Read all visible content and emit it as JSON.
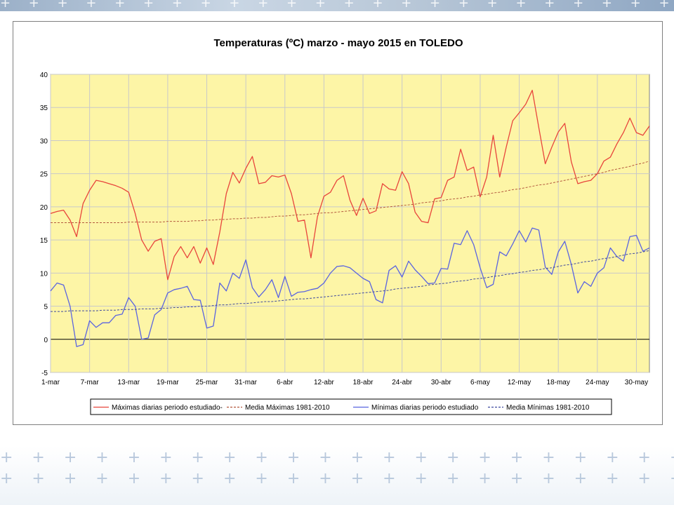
{
  "chart_data": {
    "type": "line",
    "title": "Temperaturas (ºC) marzo - mayo 2015 en TOLEDO",
    "xlabel": "",
    "ylabel": "",
    "ylim": [
      -5,
      40
    ],
    "yticks": [
      -5,
      0,
      5,
      10,
      15,
      20,
      25,
      30,
      35,
      40
    ],
    "xticks": [
      "1-mar",
      "7-mar",
      "13-mar",
      "19-mar",
      "25-mar",
      "31-mar",
      "6-abr",
      "12-abr",
      "18-abr",
      "24-abr",
      "30-abr",
      "6-may",
      "12-may",
      "18-may",
      "24-may",
      "30-may"
    ],
    "x_start": "1-mar",
    "x_end": "31-may",
    "plot_background": "#fdf5a6",
    "grid": true,
    "legend_position": "bottom",
    "series": [
      {
        "name": "Máximas diarias periodo estudiado",
        "color": "#e8453c",
        "dash": "solid",
        "values": [
          19.0,
          19.3,
          19.5,
          18.0,
          15.5,
          20.5,
          22.5,
          24.0,
          23.8,
          23.5,
          23.2,
          22.8,
          22.2,
          19.0,
          15.0,
          13.3,
          14.8,
          15.2,
          9.0,
          12.5,
          14.0,
          12.3,
          14.0,
          11.5,
          13.8,
          11.3,
          16.2,
          22.0,
          25.2,
          23.6,
          25.8,
          27.6,
          23.5,
          23.7,
          24.7,
          24.5,
          24.8,
          22.0,
          17.8,
          18.0,
          12.3,
          18.5,
          21.6,
          22.2,
          24.0,
          24.7,
          21.0,
          18.7,
          21.3,
          19.0,
          19.4,
          23.5,
          22.7,
          22.5,
          25.3,
          23.5,
          19.2,
          17.8,
          17.6,
          21.2,
          21.4,
          24.0,
          24.5,
          28.7,
          25.5,
          26.0,
          21.5,
          24.5,
          30.8,
          24.5,
          29.0,
          33.0,
          34.2,
          35.5,
          37.6,
          32.0,
          26.5,
          29.0,
          31.3,
          32.6,
          26.8,
          23.5,
          23.8,
          24.0,
          25.0,
          26.9,
          27.5,
          29.5,
          31.2,
          33.4,
          31.2,
          30.8,
          32.2
        ]
      },
      {
        "name": "Media Máximas 1981-2010",
        "color": "#b3583e",
        "dash": "dashed",
        "values": [
          17.6,
          17.6,
          17.6,
          17.6,
          17.6,
          17.6,
          17.6,
          17.6,
          17.6,
          17.6,
          17.6,
          17.6,
          17.7,
          17.7,
          17.7,
          17.7,
          17.7,
          17.7,
          17.8,
          17.8,
          17.8,
          17.8,
          17.9,
          17.9,
          18.0,
          18.0,
          18.1,
          18.1,
          18.2,
          18.2,
          18.3,
          18.3,
          18.4,
          18.4,
          18.5,
          18.6,
          18.6,
          18.7,
          18.8,
          18.8,
          18.9,
          19.0,
          19.1,
          19.1,
          19.2,
          19.3,
          19.4,
          19.5,
          19.6,
          19.7,
          19.8,
          19.9,
          20.0,
          20.1,
          20.2,
          20.3,
          20.4,
          20.6,
          20.7,
          20.8,
          20.9,
          21.1,
          21.2,
          21.3,
          21.5,
          21.6,
          21.8,
          21.9,
          22.1,
          22.2,
          22.4,
          22.6,
          22.7,
          22.9,
          23.1,
          23.3,
          23.4,
          23.6,
          23.8,
          24.0,
          24.2,
          24.4,
          24.6,
          24.8,
          25.0,
          25.2,
          25.5,
          25.7,
          25.9,
          26.1,
          26.4,
          26.6,
          26.9
        ]
      },
      {
        "name": "Mínimas diarias periodo estudiado",
        "color": "#5a64e0",
        "dash": "solid",
        "values": [
          7.3,
          8.5,
          8.2,
          5.0,
          -1.1,
          -0.8,
          2.8,
          1.8,
          2.5,
          2.5,
          3.6,
          3.8,
          6.3,
          5.0,
          0.0,
          0.2,
          3.7,
          4.5,
          7.0,
          7.5,
          7.7,
          8.0,
          6.0,
          5.9,
          1.7,
          2.0,
          8.5,
          7.3,
          10.0,
          9.2,
          12.0,
          7.8,
          6.4,
          7.5,
          9.0,
          6.3,
          9.5,
          6.5,
          7.1,
          7.2,
          7.5,
          7.7,
          8.5,
          10.0,
          11.0,
          11.1,
          10.8,
          10.0,
          9.2,
          8.7,
          6.0,
          5.5,
          10.4,
          11.1,
          9.4,
          11.8,
          10.5,
          9.5,
          8.4,
          8.5,
          10.7,
          10.6,
          14.5,
          14.3,
          16.4,
          14.3,
          10.8,
          7.8,
          8.3,
          13.2,
          12.6,
          14.4,
          16.4,
          14.7,
          16.8,
          16.5,
          10.9,
          9.8,
          13.2,
          14.8,
          11.3,
          7.0,
          8.7,
          8.0,
          10.0,
          10.8,
          13.8,
          12.5,
          11.8,
          15.5,
          15.7,
          13.3,
          13.8
        ]
      },
      {
        "name": "Media Mínimas 1981-2010",
        "color": "#3f4a9e",
        "dash": "dashed",
        "values": [
          4.2,
          4.2,
          4.2,
          4.3,
          4.3,
          4.3,
          4.3,
          4.3,
          4.4,
          4.4,
          4.4,
          4.5,
          4.5,
          4.5,
          4.6,
          4.6,
          4.6,
          4.7,
          4.7,
          4.8,
          4.8,
          4.9,
          4.9,
          5.0,
          5.0,
          5.1,
          5.2,
          5.2,
          5.3,
          5.4,
          5.4,
          5.5,
          5.6,
          5.7,
          5.7,
          5.8,
          5.9,
          6.0,
          6.1,
          6.1,
          6.2,
          6.3,
          6.4,
          6.5,
          6.6,
          6.7,
          6.8,
          6.9,
          7.0,
          7.1,
          7.2,
          7.3,
          7.4,
          7.6,
          7.7,
          7.8,
          7.9,
          8.0,
          8.2,
          8.3,
          8.4,
          8.5,
          8.7,
          8.8,
          8.9,
          9.1,
          9.2,
          9.3,
          9.5,
          9.6,
          9.8,
          9.9,
          10.1,
          10.2,
          10.4,
          10.5,
          10.7,
          10.8,
          11.0,
          11.2,
          11.3,
          11.5,
          11.7,
          11.8,
          12.0,
          12.2,
          12.3,
          12.5,
          12.7,
          12.9,
          13.0,
          13.2,
          13.4
        ]
      }
    ],
    "legend_labels": [
      "Máximas diarias periodo estudiado-",
      "Media Máximas 1981-2010",
      "Mínimas diarias periodo estudiado",
      "Media Mínimas 1981-2010"
    ]
  }
}
